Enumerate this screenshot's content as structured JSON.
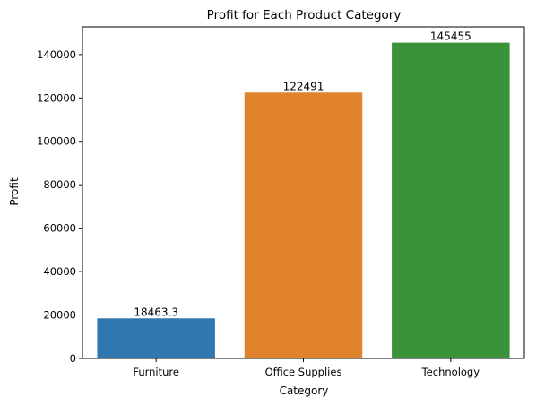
{
  "chart_data": {
    "type": "bar",
    "title": "Profit for Each Product Category",
    "xlabel": "Category",
    "ylabel": "Profit",
    "categories": [
      "Furniture",
      "Office Supplies",
      "Technology"
    ],
    "values": [
      18463.3,
      122491,
      145455
    ],
    "value_labels": [
      "18463.3",
      "122491",
      "145455"
    ],
    "colors": [
      "#2e77b0",
      "#e1822c",
      "#3a923a"
    ],
    "ylim": [
      0,
      152728
    ],
    "yticks": [
      0,
      20000,
      40000,
      60000,
      80000,
      100000,
      120000,
      140000
    ],
    "ytick_labels": [
      "0",
      "20000",
      "40000",
      "60000",
      "80000",
      "100000",
      "120000",
      "140000"
    ],
    "grid": false,
    "legend": "none"
  }
}
